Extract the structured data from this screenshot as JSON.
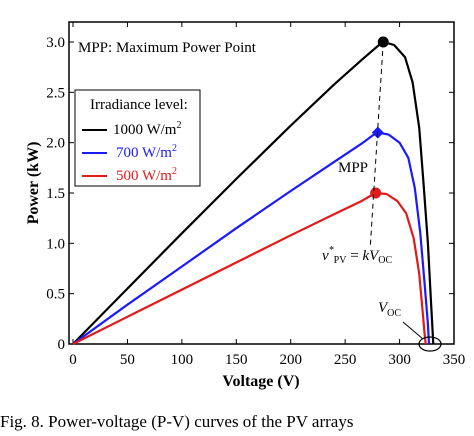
{
  "chart_data": {
    "type": "line",
    "title": "MPP: Maximum Power Point",
    "xlabel": "Voltage (V)",
    "ylabel": "Power (kW)",
    "xlim": [
      0,
      350
    ],
    "ylim": [
      0,
      3.1
    ],
    "x_ticks": [
      "0",
      "50",
      "100",
      "150",
      "200",
      "250",
      "300",
      "350"
    ],
    "y_ticks": [
      "0",
      "0.5",
      "1.0",
      "1.5",
      "2.0",
      "2.5",
      "3.0"
    ],
    "grid": false,
    "legend": {
      "title": "Irradiance level:",
      "placement": "top-left",
      "entries": [
        "1000 W/m",
        "700 W/m",
        "500 W/m"
      ],
      "superscript": "2"
    },
    "series": [
      {
        "name": "1000 W/m2",
        "color": "#000000",
        "mpp": [
          285,
          3.0
        ],
        "points": [
          [
            0,
            0
          ],
          [
            50,
            0.55
          ],
          [
            100,
            1.1
          ],
          [
            150,
            1.64
          ],
          [
            200,
            2.17
          ],
          [
            240,
            2.58
          ],
          [
            265,
            2.82
          ],
          [
            280,
            2.96
          ],
          [
            285,
            3.0
          ],
          [
            295,
            2.97
          ],
          [
            305,
            2.85
          ],
          [
            312,
            2.6
          ],
          [
            318,
            2.15
          ],
          [
            322,
            1.6
          ],
          [
            326,
            1.0
          ],
          [
            329,
            0.4
          ],
          [
            331,
            0
          ]
        ]
      },
      {
        "name": "700 W/m2",
        "color": "#1a1aff",
        "mpp": [
          280,
          2.1
        ],
        "points": [
          [
            0,
            0
          ],
          [
            50,
            0.39
          ],
          [
            100,
            0.77
          ],
          [
            150,
            1.15
          ],
          [
            200,
            1.52
          ],
          [
            240,
            1.81
          ],
          [
            265,
            1.99
          ],
          [
            275,
            2.07
          ],
          [
            280,
            2.1
          ],
          [
            290,
            2.08
          ],
          [
            300,
            2.0
          ],
          [
            308,
            1.85
          ],
          [
            314,
            1.55
          ],
          [
            319,
            1.1
          ],
          [
            323,
            0.6
          ],
          [
            326,
            0.2
          ],
          [
            327,
            0
          ]
        ]
      },
      {
        "name": "500 W/m2",
        "color": "#e01b1b",
        "mpp": [
          278,
          1.5
        ],
        "points": [
          [
            0,
            0
          ],
          [
            50,
            0.27
          ],
          [
            100,
            0.54
          ],
          [
            150,
            0.81
          ],
          [
            200,
            1.08
          ],
          [
            240,
            1.29
          ],
          [
            265,
            1.42
          ],
          [
            273,
            1.47
          ],
          [
            278,
            1.5
          ],
          [
            288,
            1.49
          ],
          [
            298,
            1.42
          ],
          [
            306,
            1.3
          ],
          [
            313,
            1.05
          ],
          [
            318,
            0.7
          ],
          [
            321,
            0.35
          ],
          [
            323,
            0.1
          ],
          [
            324,
            0
          ]
        ]
      }
    ],
    "annotations": {
      "mpp_label": "MPP",
      "vpv_formula": "v*pv = kVOC",
      "voc_label": "VOC"
    }
  },
  "caption": "Fig. 8. Power-voltage (P-V) curves of the PV arrays"
}
